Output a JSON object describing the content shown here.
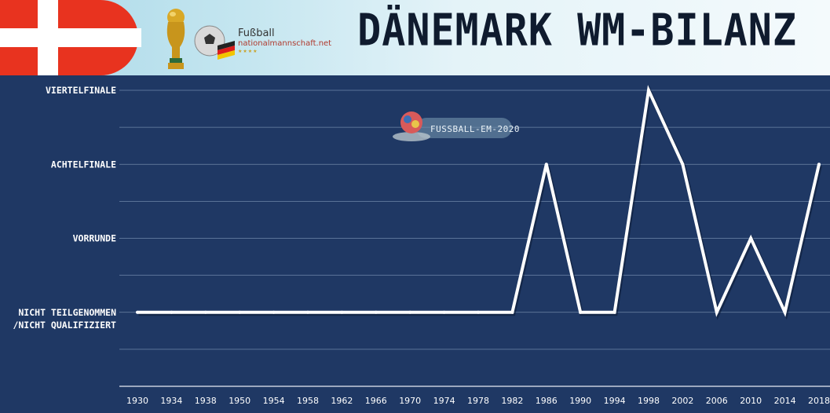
{
  "header": {
    "title": "DÄNEMARK WM-BILANZ",
    "brand_line1": "Fußball",
    "brand_line2": "nationalmannschaft.net"
  },
  "watermark": {
    "label": "FUSSBALL-EM-2020"
  },
  "colors": {
    "background": "#1f3864",
    "line": "#ffffff",
    "flag_red": "#e8331f",
    "header_start": "#a9d8e8"
  },
  "chart_data": {
    "type": "line",
    "title": "DÄNEMARK WM-BILANZ",
    "x": [
      "1930",
      "1934",
      "1938",
      "1950",
      "1954",
      "1958",
      "1962",
      "1966",
      "1970",
      "1974",
      "1978",
      "1982",
      "1986",
      "1990",
      "1994",
      "1998",
      "2002",
      "2006",
      "2010",
      "2014",
      "2018"
    ],
    "y_levels": [
      [
        "NICHT TEILGENOMMEN",
        "/NICHT QUALIFIZIERT"
      ],
      [
        "VORRUNDE"
      ],
      [
        "ACHTELFINALE"
      ],
      [
        "VIERTELFINALE"
      ]
    ],
    "series": [
      {
        "values": [
          0,
          0,
          0,
          0,
          0,
          0,
          0,
          0,
          0,
          0,
          0,
          0,
          2,
          0,
          0,
          3,
          2,
          0,
          1,
          0,
          2
        ]
      }
    ],
    "ylim": [
      -1,
      3
    ],
    "grid": true
  }
}
